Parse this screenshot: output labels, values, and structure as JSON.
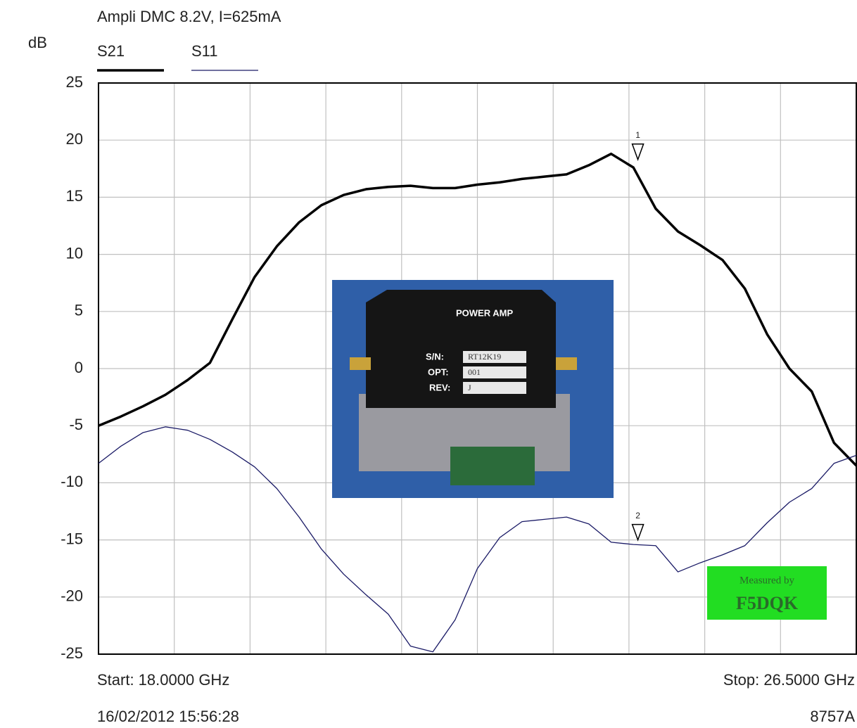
{
  "chart_data": {
    "type": "line",
    "title": "Ampli DMC 8.2V, I=625mA",
    "y_label": "dB",
    "start_label": "Start: 18.0000 GHz",
    "stop_label": "Stop: 26.5000 GHz",
    "timestamp": "16/02/2012 15:56:28",
    "instrument": "8757A",
    "x": [
      18,
      18.25,
      18.5,
      18.75,
      19,
      19.25,
      19.5,
      19.75,
      20,
      20.25,
      20.5,
      20.75,
      21,
      21.25,
      21.5,
      21.75,
      22,
      22.25,
      22.5,
      22.75,
      23,
      23.25,
      23.5,
      23.75,
      24,
      24.25,
      24.5,
      24.75,
      25,
      25.25,
      25.5,
      25.75,
      26,
      26.25,
      26.5
    ],
    "series": [
      {
        "name": "S21",
        "color": "#000000",
        "width": 3.5,
        "values": [
          -5,
          -4.2,
          -3.3,
          -2.3,
          -1.0,
          0.5,
          4.3,
          8.0,
          10.7,
          12.8,
          14.3,
          15.2,
          15.7,
          15.9,
          16.0,
          15.8,
          15.8,
          16.1,
          16.3,
          16.6,
          16.8,
          17.0,
          17.8,
          18.8,
          17.6,
          14.0,
          12.0,
          10.8,
          9.5,
          7.0,
          3.0,
          0.0,
          -2.0,
          -6.5,
          -8.5
        ]
      },
      {
        "name": "S11",
        "color": "#1a1a66",
        "width": 1.3,
        "values": [
          -8.3,
          -6.8,
          -5.6,
          -5.1,
          -5.4,
          -6.2,
          -7.3,
          -8.6,
          -10.5,
          -13.0,
          -15.8,
          -18.0,
          -19.8,
          -21.5,
          -24.3,
          -24.8,
          -22.0,
          -17.5,
          -14.8,
          -13.4,
          -13.2,
          -13.0,
          -13.6,
          -15.2,
          -15.4,
          -15.5,
          -17.8,
          -17.0,
          -16.3,
          -15.5,
          -13.5,
          -11.7,
          -10.5,
          -8.3,
          -7.6
        ]
      }
    ],
    "markers": [
      {
        "label": "1",
        "x": 24.05,
        "value": 18.3
      },
      {
        "label": "2",
        "x": 24.05,
        "value": -15.0
      }
    ],
    "xlim": [
      18,
      26.5
    ],
    "xticks": [
      18.85,
      19.7,
      20.55,
      21.4,
      22.25,
      23.1,
      23.95,
      24.8,
      25.65
    ],
    "ylim": [
      -25,
      25
    ],
    "yticks": [
      -25,
      -20,
      -15,
      -10,
      -5,
      0,
      5,
      10,
      15,
      20,
      25
    ],
    "grid": true
  },
  "inset": {
    "labels": [
      "POWER AMP",
      "S/N:",
      "RT12K19",
      "OPT:",
      "001",
      "REV:",
      "J"
    ]
  },
  "badge": {
    "line1": "Measured by",
    "line2": "F5DQK"
  }
}
